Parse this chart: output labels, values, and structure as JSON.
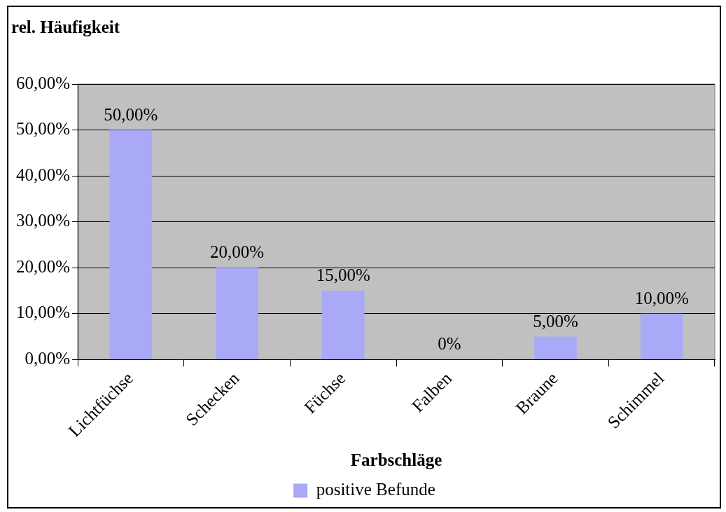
{
  "chart_data": {
    "type": "bar",
    "ylabel": "rel. Häufigkeit",
    "xlabel": "Farbschläge",
    "categories": [
      "Lichtfüchse",
      "Schecken",
      "Füchse",
      "Falben",
      "Braune",
      "Schimmel"
    ],
    "series": [
      {
        "name": "positive Befunde",
        "color": "#a9a9f7",
        "values": [
          50,
          20,
          15,
          0,
          5,
          10
        ]
      }
    ],
    "value_labels": [
      "50,00%",
      "20,00%",
      "15,00%",
      "0%",
      "5,00%",
      "10,00%"
    ],
    "ylim": [
      0,
      60
    ],
    "yticks": [
      {
        "value": 0,
        "label": "0,00%"
      },
      {
        "value": 10,
        "label": "10,00%"
      },
      {
        "value": 20,
        "label": "20,00%"
      },
      {
        "value": 30,
        "label": "30,00%"
      },
      {
        "value": 40,
        "label": "40,00%"
      },
      {
        "value": 50,
        "label": "50,00%"
      },
      {
        "value": 60,
        "label": "60,00%"
      }
    ],
    "grid": "y",
    "legend": "bottom"
  }
}
